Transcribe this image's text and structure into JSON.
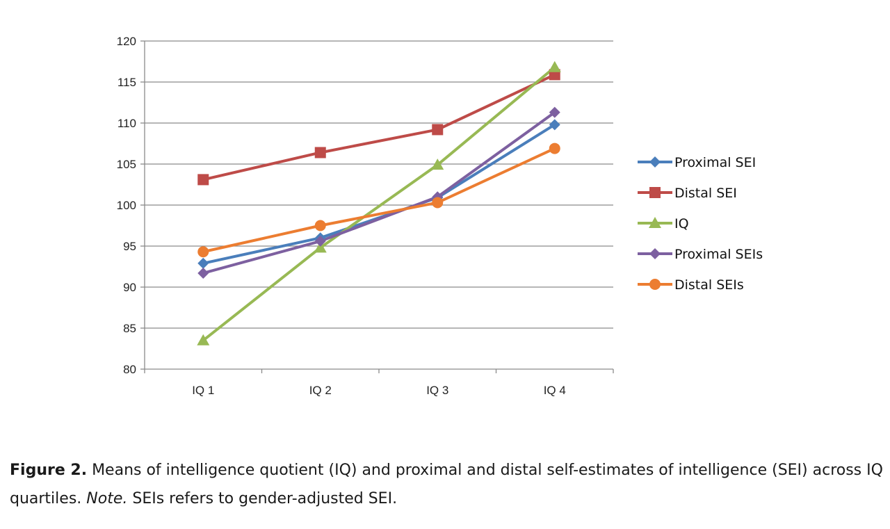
{
  "chart_data": {
    "type": "line",
    "categories": [
      "IQ 1",
      "IQ 2",
      "IQ 3",
      "IQ 4"
    ],
    "ylim": [
      80,
      120
    ],
    "yticks": [
      80,
      85,
      90,
      95,
      100,
      105,
      110,
      115,
      120
    ],
    "grid": true,
    "legend_position": "right",
    "series": [
      {
        "name": "Proximal SEI",
        "values": [
          92.9,
          96.0,
          100.9,
          109.8
        ],
        "color": "#4a7ebb",
        "marker": "diamond"
      },
      {
        "name": "Distal SEI",
        "values": [
          103.1,
          106.4,
          109.2,
          115.9
        ],
        "color": "#be4b48",
        "marker": "square"
      },
      {
        "name": "IQ",
        "values": [
          83.5,
          94.8,
          104.9,
          116.8
        ],
        "color": "#98b954",
        "marker": "triangle"
      },
      {
        "name": "Proximal SEIs",
        "values": [
          91.7,
          95.6,
          101.0,
          111.3
        ],
        "color": "#7d60a0",
        "marker": "diamond"
      },
      {
        "name": "Distal SEIs",
        "values": [
          94.3,
          97.5,
          100.3,
          106.9
        ],
        "color": "#ec7d31",
        "marker": "circle"
      }
    ]
  },
  "caption": {
    "label": "Figure 2.",
    "text1": " Means of intelligence quotient (IQ) and proximal and distal self-estimates of intelligence (SEI) across IQ quartiles. ",
    "note": "Note.",
    "text2": " SEIs refers to gender-adjusted SEI."
  }
}
